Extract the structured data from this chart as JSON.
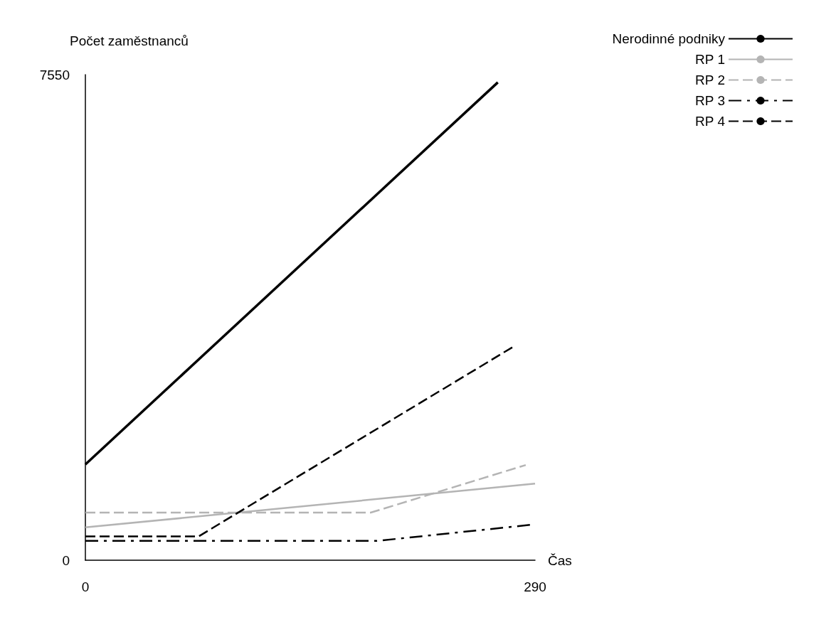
{
  "chart_data": {
    "type": "line",
    "xlabel": "Čas",
    "ylabel": "Počet zaměstnanců",
    "xlim": [
      0,
      290
    ],
    "xticks": [
      0,
      290
    ],
    "ylim": [
      0,
      7550
    ],
    "yticks": [
      0,
      7550
    ],
    "grid": false,
    "legend": "top right",
    "marker": "none",
    "series": [
      {
        "name": "Nerodinné podniky",
        "color": "#000000",
        "line_style": "solid",
        "x": [
          0,
          266
        ],
        "values": [
          1490,
          7430
        ]
      },
      {
        "name": "RP 1",
        "color": "#b4b4b4",
        "line_style": "solid",
        "x": [
          0,
          290
        ],
        "values": [
          510,
          1190
        ]
      },
      {
        "name": "RP 2",
        "color": "#b4b4b4",
        "line_style": "dashed",
        "x": [
          0,
          184,
          284
        ],
        "values": [
          740,
          740,
          1480
        ]
      },
      {
        "name": "RP 3",
        "color": "#000000",
        "line_style": "dashdot",
        "x": [
          0,
          188,
          287
        ],
        "values": [
          300,
          300,
          550
        ]
      },
      {
        "name": "RP 4",
        "color": "#000000",
        "line_style": "dashed",
        "x": [
          0,
          73,
          276
        ],
        "values": [
          370,
          370,
          3320
        ]
      }
    ]
  }
}
